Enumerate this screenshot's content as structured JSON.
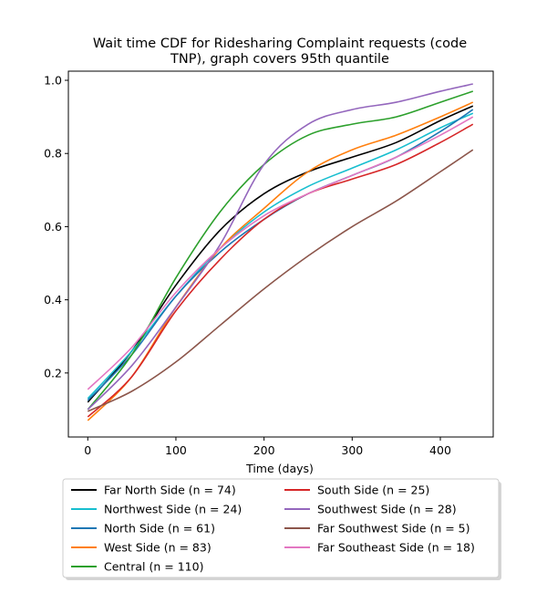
{
  "chart_data": {
    "type": "line",
    "title": "Wait time CDF for Ridesharing Complaint  requests (code TNP), graph covers 95th quantile",
    "title_lines": [
      "Wait time CDF for Ridesharing Complaint  requests (code",
      "TNP), graph covers 95th quantile"
    ],
    "xlabel": "Time (days)",
    "ylabel": "",
    "xlim": [
      -22,
      460
    ],
    "ylim": [
      0.025,
      1.025
    ],
    "xticks": [
      0,
      100,
      200,
      300,
      400
    ],
    "yticks": [
      0.2,
      0.4,
      0.6,
      0.8,
      1.0
    ],
    "ytick_labels": [
      "0.2",
      "0.4",
      "0.6",
      "0.8",
      "1.0"
    ],
    "grid": false,
    "legend_position": "below plot, two columns",
    "x": [
      0,
      50,
      100,
      150,
      200,
      250,
      300,
      350,
      400,
      437
    ],
    "series": [
      {
        "name": "Far North Side (n = 74)",
        "color": "#000000",
        "values": [
          0.12,
          0.26,
          0.44,
          0.59,
          0.69,
          0.75,
          0.79,
          0.83,
          0.89,
          0.93
        ]
      },
      {
        "name": "Northwest Side (n = 24)",
        "color": "#17becf",
        "values": [
          0.13,
          0.26,
          0.41,
          0.54,
          0.64,
          0.71,
          0.76,
          0.81,
          0.87,
          0.91
        ]
      },
      {
        "name": "North Side (n = 61)",
        "color": "#1f77b4",
        "values": [
          0.125,
          0.25,
          0.41,
          0.53,
          0.62,
          0.69,
          0.74,
          0.79,
          0.86,
          0.92
        ]
      },
      {
        "name": "West Side (n = 83)",
        "color": "#ff7f0e",
        "values": [
          0.07,
          0.19,
          0.38,
          0.54,
          0.65,
          0.75,
          0.81,
          0.85,
          0.9,
          0.94
        ]
      },
      {
        "name": "Central (n = 110)",
        "color": "#2ca02c",
        "values": [
          0.1,
          0.25,
          0.46,
          0.64,
          0.77,
          0.85,
          0.88,
          0.9,
          0.94,
          0.97
        ]
      },
      {
        "name": "South Side (n = 25)",
        "color": "#d62728",
        "values": [
          0.08,
          0.19,
          0.37,
          0.51,
          0.62,
          0.69,
          0.73,
          0.77,
          0.83,
          0.88
        ]
      },
      {
        "name": "Southwest Side (n = 28)",
        "color": "#9467bd",
        "values": [
          0.1,
          0.22,
          0.38,
          0.55,
          0.77,
          0.88,
          0.92,
          0.94,
          0.97,
          0.99
        ]
      },
      {
        "name": "Far Southwest Side (n = 5)",
        "color": "#8c564b",
        "values": [
          0.095,
          0.15,
          0.23,
          0.33,
          0.43,
          0.52,
          0.6,
          0.67,
          0.75,
          0.81
        ]
      },
      {
        "name": "Far Southeast Side (n = 18)",
        "color": "#e377c2",
        "values": [
          0.155,
          0.27,
          0.42,
          0.54,
          0.63,
          0.69,
          0.74,
          0.79,
          0.85,
          0.9
        ]
      }
    ]
  }
}
